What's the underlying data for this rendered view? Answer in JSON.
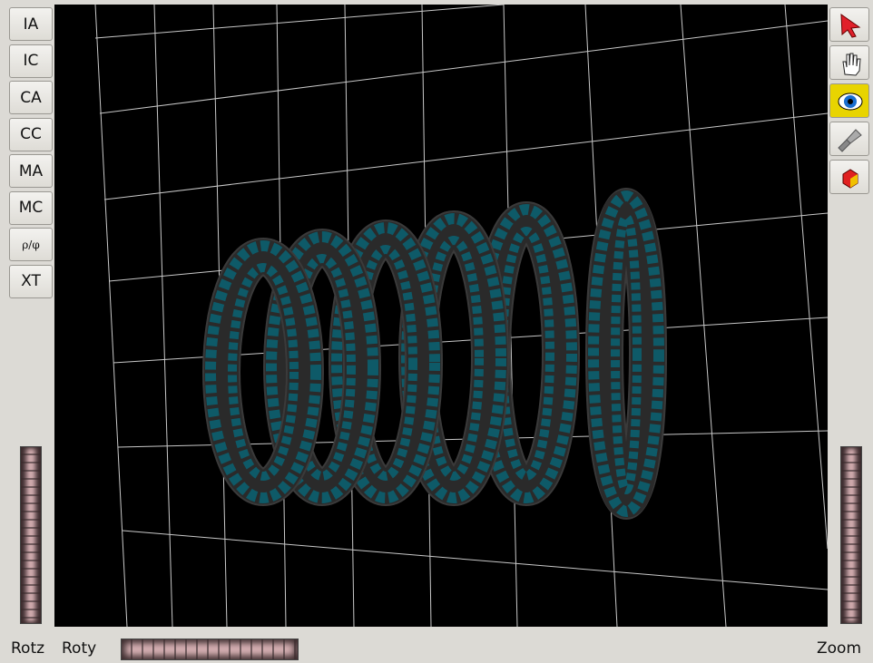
{
  "left_buttons": [
    "IA",
    "IC",
    "CA",
    "CC",
    "MA",
    "MC",
    "ρ/φ",
    "XT"
  ],
  "bottom_labels": {
    "rotz": "Rotz",
    "roty": "Roty",
    "zoom": "Zoom"
  }
}
